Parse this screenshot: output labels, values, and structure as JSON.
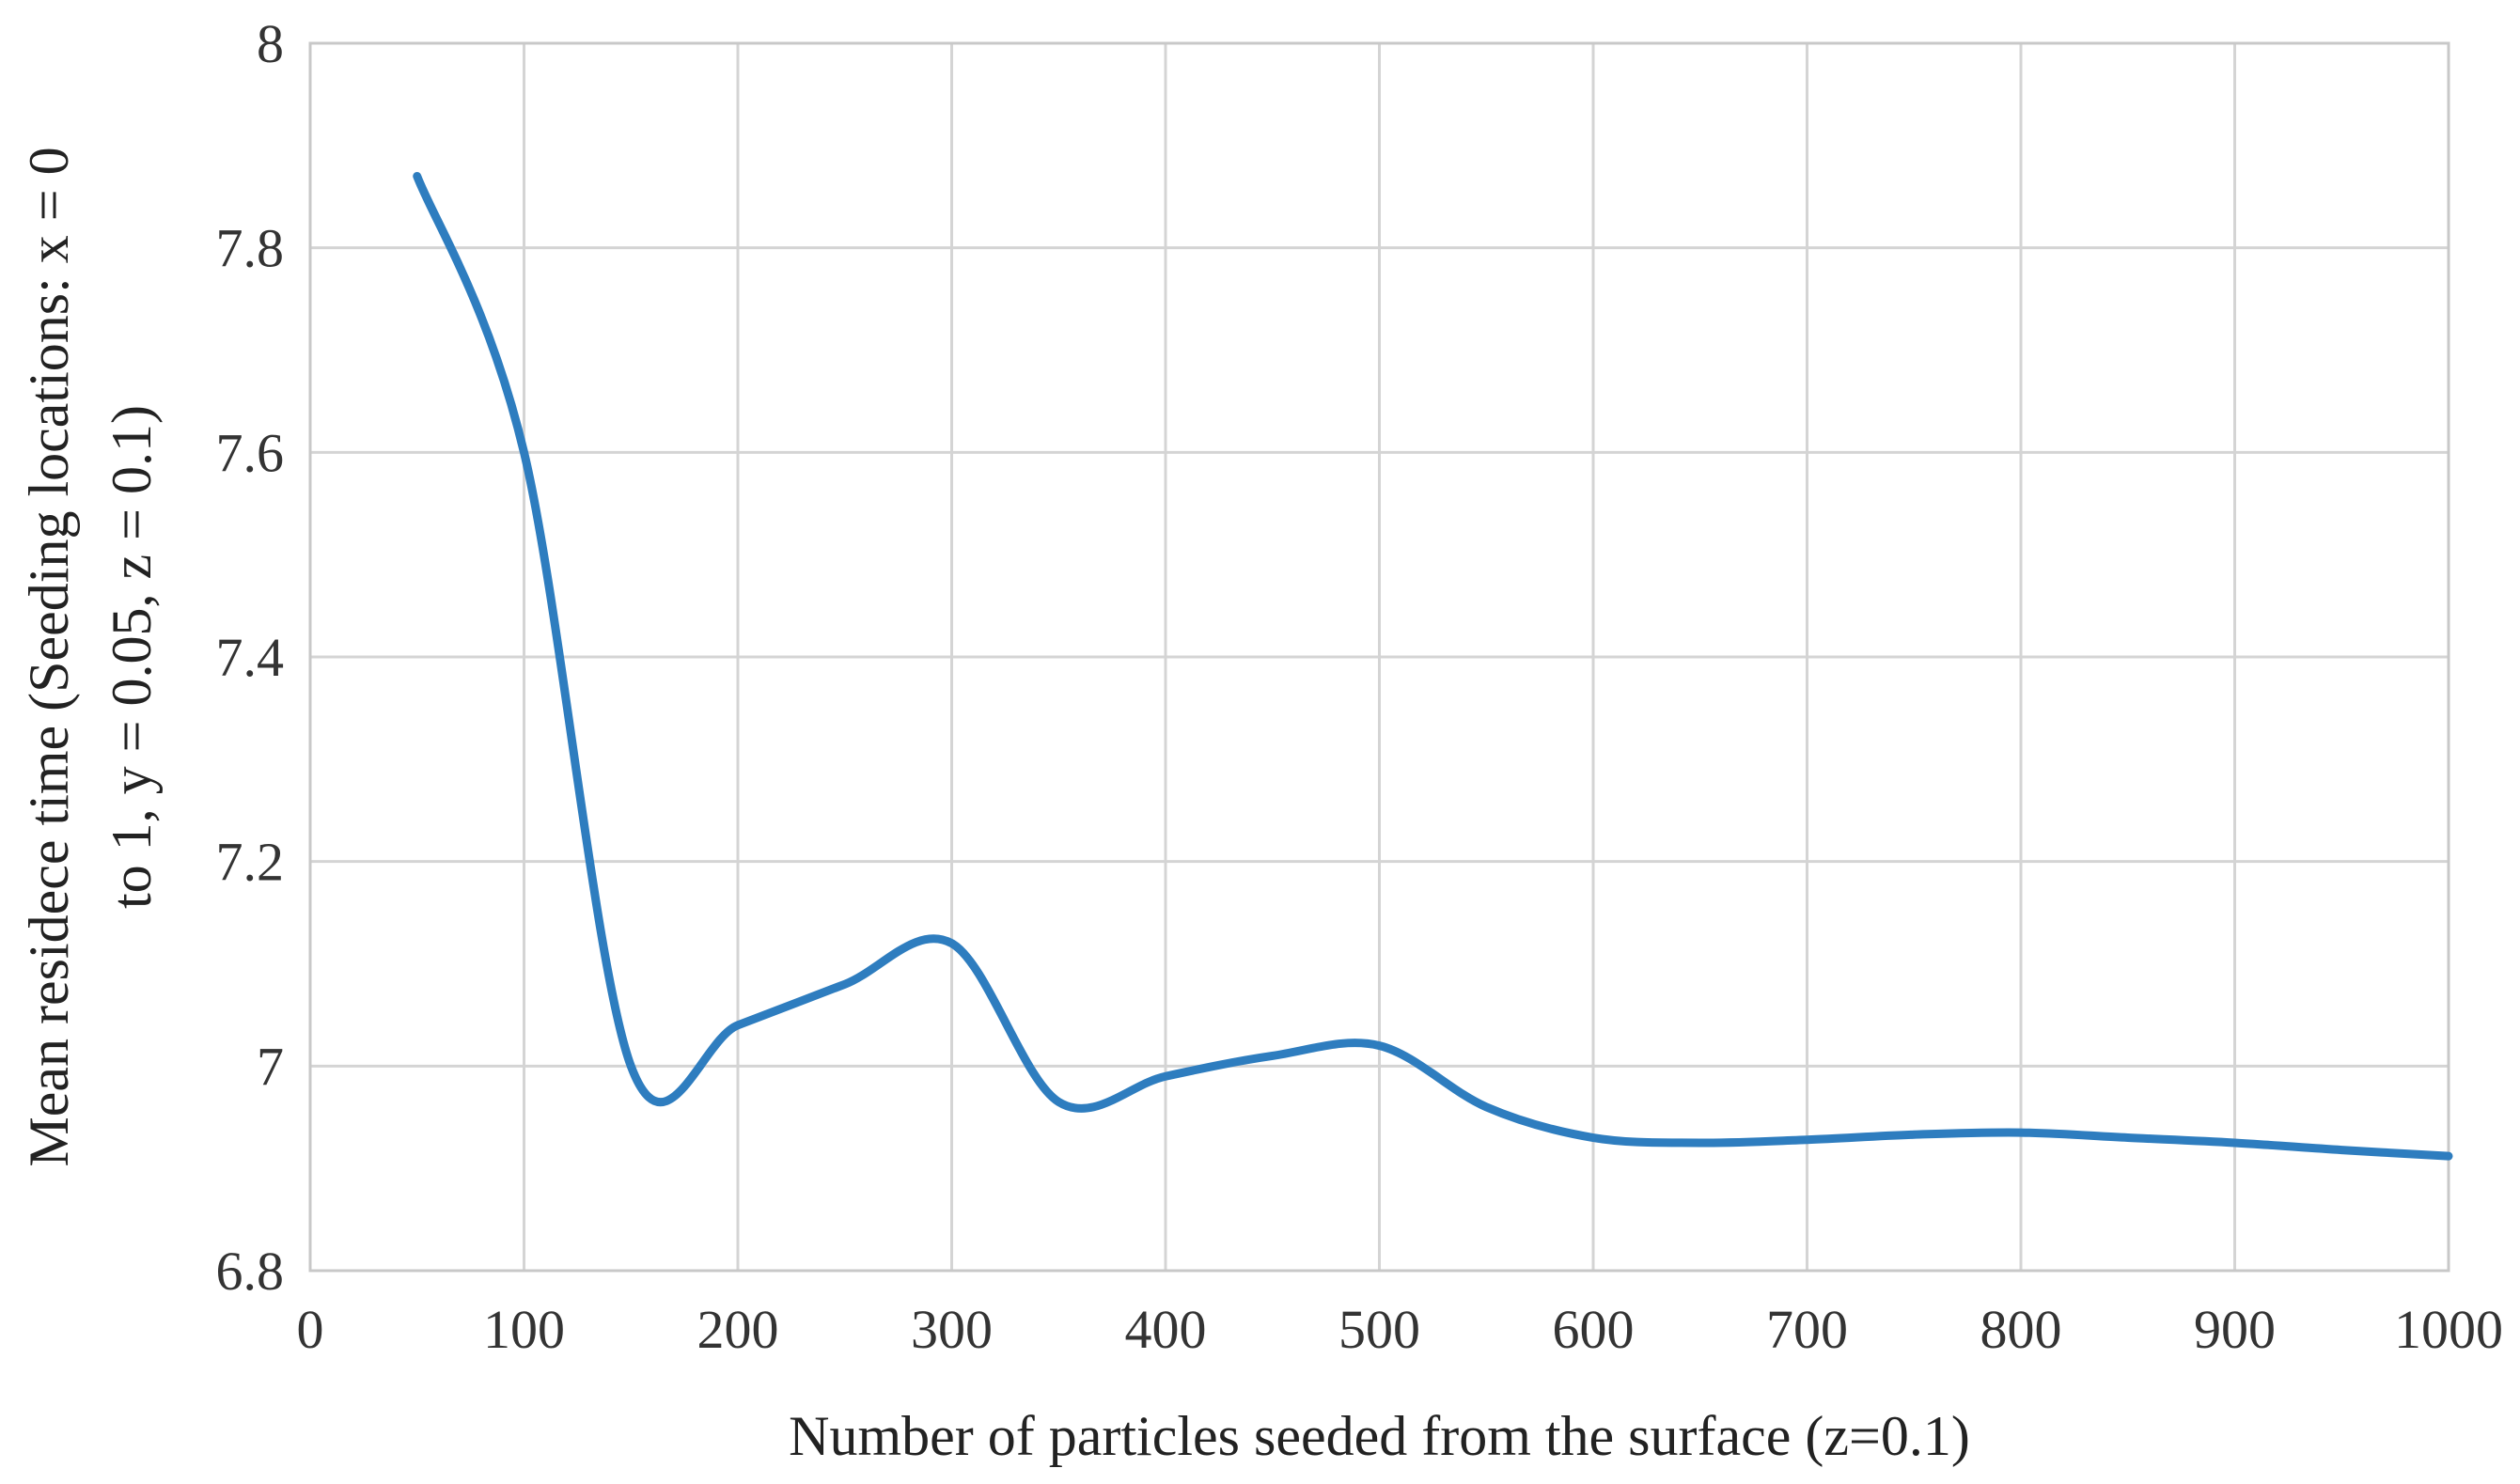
{
  "chart_data": {
    "type": "line",
    "title": "",
    "xlabel": "Number of particles seeded from the surface (z=0.1)",
    "ylabel_lines": [
      "Mean residece time (Seeding locations: x = 0",
      "to 1, y = 0.05, z = 0.1)"
    ],
    "xlim": [
      0,
      1000
    ],
    "ylim": [
      6.8,
      8
    ],
    "x_ticks": [
      0,
      100,
      200,
      300,
      400,
      500,
      600,
      700,
      800,
      900,
      1000
    ],
    "x_tick_labels": [
      "0",
      "100",
      "200",
      "300",
      "400",
      "500",
      "600",
      "700",
      "800",
      "900",
      "1000"
    ],
    "y_ticks": [
      6.8,
      7,
      7.2,
      7.4,
      7.6,
      7.8,
      8
    ],
    "y_tick_labels": [
      "6.8",
      "7",
      "7.2",
      "7.4",
      "7.6",
      "7.8",
      "8"
    ],
    "grid": true,
    "legend": "none",
    "series": [
      {
        "name": "Mean residence time",
        "color": "#2e7dbf",
        "x": [
          50,
          100,
          150,
          200,
          250,
          300,
          350,
          400,
          450,
          500,
          550,
          600,
          650,
          700,
          750,
          800,
          850,
          900,
          950,
          1000
        ],
        "values": [
          7.87,
          7.6,
          7.0,
          7.04,
          7.08,
          7.12,
          6.965,
          6.99,
          7.01,
          7.02,
          6.96,
          6.93,
          6.925,
          6.928,
          6.933,
          6.935,
          6.93,
          6.925,
          6.918,
          6.912
        ]
      }
    ]
  }
}
